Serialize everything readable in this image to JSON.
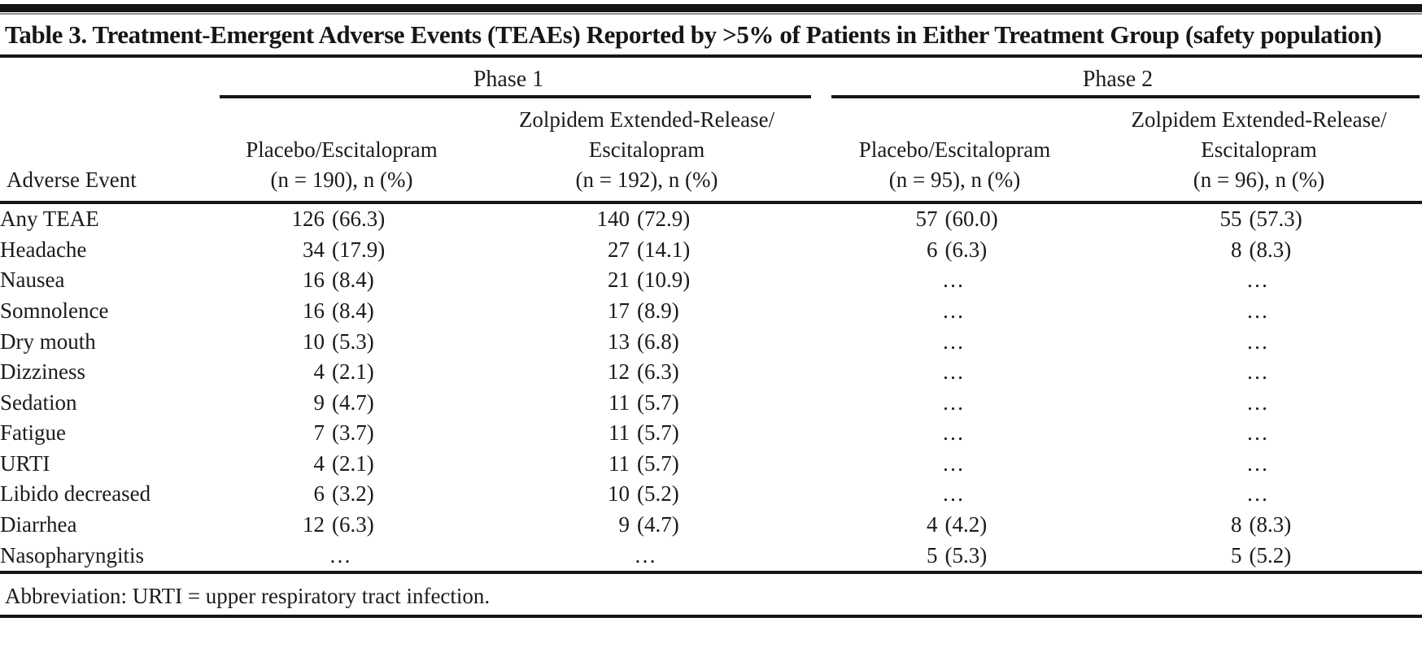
{
  "title": "Table 3. Treatment-Emergent Adverse Events (TEAEs) Reported by >5% of Patients in Either Treatment Group (safety population)",
  "table": {
    "phase_groups": [
      {
        "label": "Phase 1"
      },
      {
        "label": "Phase 2"
      }
    ],
    "row_header": "Adverse Event",
    "columns": [
      {
        "group": "Phase 1",
        "lines": [
          "Placebo/Escitalopram",
          "(n = 190), n (%)"
        ]
      },
      {
        "group": "Phase 1",
        "lines": [
          "Zolpidem Extended-Release/",
          "Escitalopram",
          "(n = 192), n (%)"
        ]
      },
      {
        "group": "Phase 2",
        "lines": [
          "Placebo/Escitalopram",
          "(n = 95), n (%)"
        ]
      },
      {
        "group": "Phase 2",
        "lines": [
          "Zolpidem Extended-Release/",
          "Escitalopram",
          "(n = 96), n (%)"
        ]
      }
    ],
    "rows": [
      {
        "event": "Any TEAE",
        "values": [
          "126 (66.3)",
          "140 (72.9)",
          "57 (60.0)",
          "55 (57.3)"
        ]
      },
      {
        "event": "Headache",
        "values": [
          "34 (17.9)",
          "27 (14.1)",
          "6 (6.3)",
          "8 (8.3)"
        ]
      },
      {
        "event": "Nausea",
        "values": [
          "16 (8.4)",
          "21 (10.9)",
          "…",
          "…"
        ]
      },
      {
        "event": "Somnolence",
        "values": [
          "16 (8.4)",
          "17 (8.9)",
          "…",
          "…"
        ]
      },
      {
        "event": "Dry mouth",
        "values": [
          "10 (5.3)",
          "13 (6.8)",
          "…",
          "…"
        ]
      },
      {
        "event": "Dizziness",
        "values": [
          "4 (2.1)",
          "12 (6.3)",
          "…",
          "…"
        ]
      },
      {
        "event": "Sedation",
        "values": [
          "9 (4.7)",
          "11 (5.7)",
          "…",
          "…"
        ]
      },
      {
        "event": "Fatigue",
        "values": [
          "7 (3.7)",
          "11 (5.7)",
          "…",
          "…"
        ]
      },
      {
        "event": "URTI",
        "values": [
          "4 (2.1)",
          "11 (5.7)",
          "…",
          "…"
        ]
      },
      {
        "event": "Libido decreased",
        "values": [
          "6 (3.2)",
          "10 (5.2)",
          "…",
          "…"
        ]
      },
      {
        "event": "Diarrhea",
        "values": [
          "12 (6.3)",
          "9 (4.7)",
          "4 (4.2)",
          "8 (8.3)"
        ]
      },
      {
        "event": "Nasopharyngitis",
        "values": [
          "…",
          "…",
          "5 (5.3)",
          "5 (5.2)"
        ]
      }
    ]
  },
  "footnote": "Abbreviation: URTI = upper respiratory tract infection.",
  "colors": {
    "ink": "#161616",
    "top_bar": "#141414",
    "top_bar_shadow": "#8f8f8f",
    "background": "#ffffff"
  }
}
